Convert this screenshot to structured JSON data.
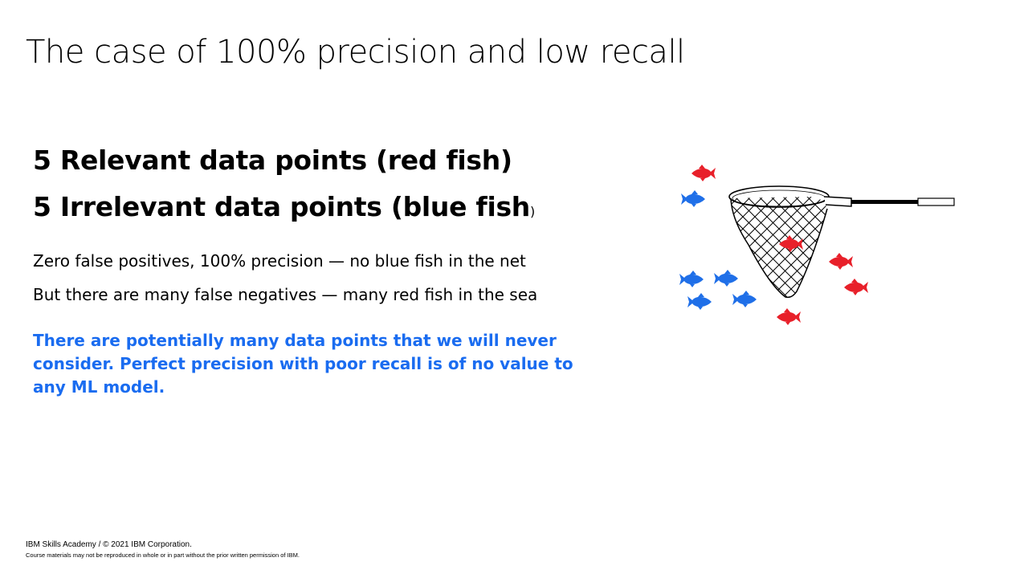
{
  "slide": {
    "title": "The case of 100% precision and low recall",
    "heading_relevant": "5 Relevant data points (red fish)",
    "heading_irrelevant_main": "5 Irrelevant data points (blue fish",
    "heading_irrelevant_paren": ")",
    "line_precision": "Zero false positives, 100% precision — no blue fish in the net",
    "line_recall": "But there are many false negatives — many red fish in the sea",
    "callout": "There are potentially many data points that we will never consider. Perfect precision with poor recall is of no value to any ML model.",
    "footer_copyright": "IBM Skills Academy / © 2021 IBM Corporation.",
    "footer_notice": "Course materials may not be reproduced  in whole or in part without the prior written permission  of IBM."
  },
  "illustration": {
    "red_fish_color": "#e8202a",
    "blue_fish_color": "#1f6fe8",
    "net_color": "#000000",
    "icons": [
      "net-icon",
      "red-fish-icon",
      "blue-fish-icon"
    ]
  }
}
